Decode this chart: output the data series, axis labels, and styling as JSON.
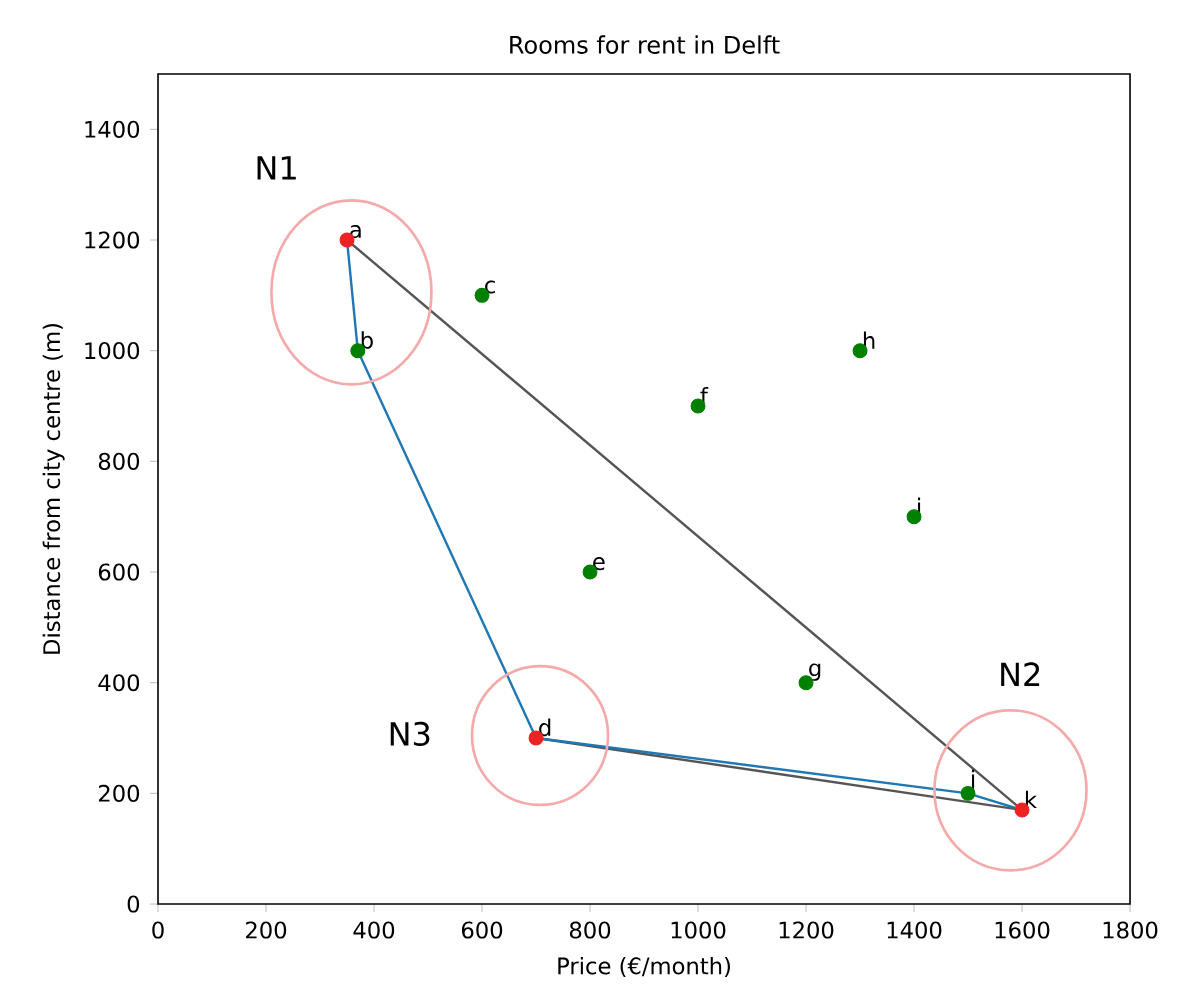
{
  "chart_data": {
    "type": "scatter",
    "title": "Rooms for rent in Delft",
    "xlabel": "Price (€/month)",
    "ylabel": "Distance from city centre (m)",
    "xlim": [
      0,
      1800
    ],
    "ylim": [
      0,
      1500
    ],
    "xticks": [
      0,
      200,
      400,
      600,
      800,
      1000,
      1200,
      1400,
      1600,
      1800
    ],
    "yticks": [
      0,
      200,
      400,
      600,
      800,
      1000,
      1200,
      1400
    ],
    "grid": false,
    "series": [
      {
        "type": "line",
        "marker": "none",
        "color": "#555555",
        "x": [
          350,
          1600,
          700
        ],
        "values": [
          1200,
          170,
          300
        ]
      },
      {
        "type": "line",
        "marker": "none",
        "color": "#1f77b4",
        "x": [
          350,
          370,
          700,
          1500,
          1600
        ],
        "values": [
          1200,
          1000,
          300,
          200,
          170
        ]
      },
      {
        "marker": "circle",
        "color": "#008000",
        "x": [
          370,
          600,
          800,
          1000,
          1200,
          1300,
          1400,
          1500
        ],
        "values": [
          1000,
          1100,
          600,
          900,
          400,
          1000,
          700,
          200
        ]
      },
      {
        "marker": "circle",
        "color": "#ee2222",
        "x": [
          350,
          700,
          1600
        ],
        "values": [
          1200,
          300,
          170
        ]
      }
    ],
    "annotations": [
      {
        "text": "a",
        "x": 350,
        "y": 1200
      },
      {
        "text": "b",
        "x": 370,
        "y": 1000
      },
      {
        "text": "c",
        "x": 600,
        "y": 1100
      },
      {
        "text": "d",
        "x": 700,
        "y": 300
      },
      {
        "text": "e",
        "x": 800,
        "y": 600
      },
      {
        "text": "f",
        "x": 1000,
        "y": 900
      },
      {
        "text": "g",
        "x": 1200,
        "y": 400
      },
      {
        "text": "h",
        "x": 1300,
        "y": 1000
      },
      {
        "text": "i",
        "x": 1400,
        "y": 700
      },
      {
        "text": "j",
        "x": 1500,
        "y": 200
      },
      {
        "text": "k",
        "x": 1600,
        "y": 170
      },
      "N1",
      "N2",
      "N3"
    ]
  }
}
